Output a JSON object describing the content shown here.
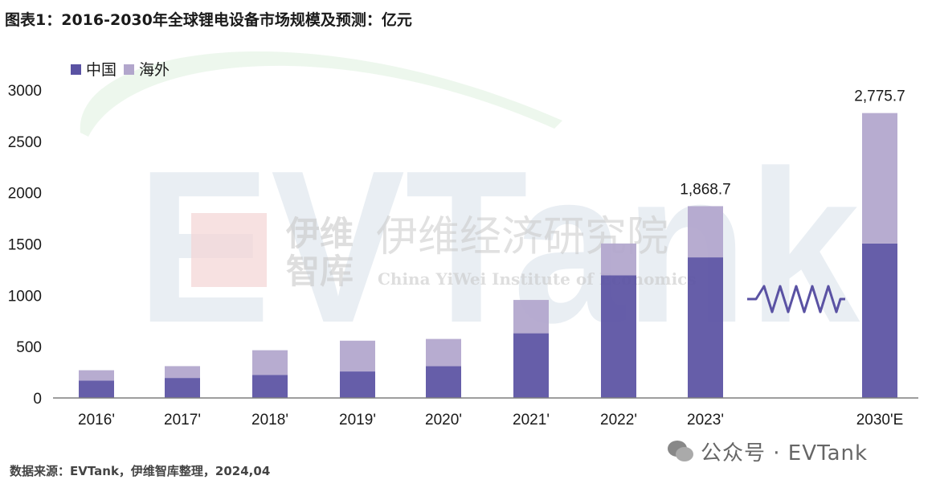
{
  "figure": {
    "title": "图表1：2016-2030年全球锂电设备市场规模及预测：亿元",
    "source_note": "数据来源：EVTank，伊维智库整理，2024,04",
    "watermark_account": "公众号 · EVTank",
    "watermark_brand": "EVTank",
    "watermark_cn_short_1": "伊维",
    "watermark_cn_short_2": "智库",
    "watermark_cn_long": "伊维经济研究院",
    "watermark_en": "China YiWei Institute of Economics"
  },
  "colors": {
    "china": "#5a52a3",
    "overseas": "#b2a6cc",
    "axis": "#7f7f7f",
    "text": "#1a1a1a",
    "break_mark": "#5a52a3"
  },
  "chart_data": {
    "type": "bar",
    "stacked": true,
    "title": "",
    "xlabel": "",
    "ylabel": "",
    "categories": [
      "2016'",
      "2017'",
      "2018'",
      "2019'",
      "2020'",
      "2021'",
      "2022'",
      "2023'",
      "2030'E"
    ],
    "series": [
      {
        "name": "中国",
        "color": "#5a52a3",
        "values": [
          170,
          195,
          225,
          258,
          310,
          630,
          1195,
          1370,
          1505
        ]
      },
      {
        "name": "海外",
        "color": "#b2a6cc",
        "values": [
          100,
          115,
          240,
          300,
          265,
          325,
          310,
          498.7,
          1270.7
        ]
      }
    ],
    "total_labels": [
      {
        "category": "2023'",
        "text": "1,868.7"
      },
      {
        "category": "2030'E",
        "text": "2,775.7"
      }
    ],
    "axis_break_between": [
      "2023'",
      "2030'E"
    ],
    "ylim": [
      0,
      3000
    ],
    "yticks": [
      0,
      500,
      1000,
      1500,
      2000,
      2500,
      3000
    ],
    "grid": false,
    "legend": "top-left"
  }
}
